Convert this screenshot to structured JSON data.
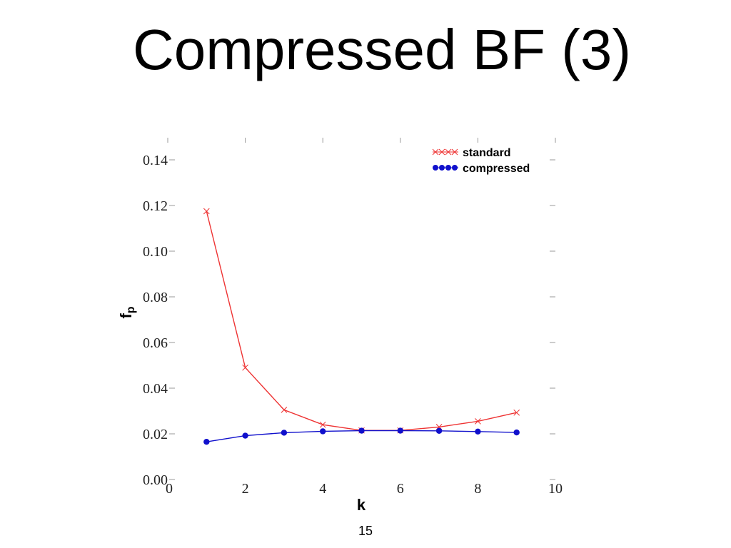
{
  "slide": {
    "title": "Compressed BF (3)",
    "page_number": "15"
  },
  "chart_data": {
    "type": "line",
    "xlabel": "k",
    "ylabel_main": "f",
    "ylabel_sub": "p",
    "xlim": [
      0,
      10
    ],
    "ylim": [
      0,
      0.14
    ],
    "x_ticks": [
      "0",
      "2",
      "4",
      "6",
      "8",
      "10"
    ],
    "x_tick_values": [
      0,
      2,
      4,
      6,
      8,
      10
    ],
    "y_ticks": [
      "0.00",
      "0.02",
      "0.04",
      "0.06",
      "0.08",
      "0.10",
      "0.12",
      "0.14"
    ],
    "y_tick_values": [
      0,
      0.02,
      0.04,
      0.06,
      0.08,
      0.1,
      0.12,
      0.14
    ],
    "grid": false,
    "legend_position": "top-right",
    "x": [
      1,
      2,
      3,
      4,
      5,
      6,
      7,
      8,
      9
    ],
    "series": [
      {
        "name": "standard",
        "color": "#ee3333",
        "marker": "x",
        "values": [
          0.1175,
          0.049,
          0.0305,
          0.024,
          0.0215,
          0.0215,
          0.023,
          0.0255,
          0.0293
        ]
      },
      {
        "name": "compressed",
        "color": "#1010cc",
        "marker": "dot",
        "values": [
          0.0165,
          0.0192,
          0.0205,
          0.0211,
          0.0214,
          0.0214,
          0.0213,
          0.021,
          0.0206
        ]
      }
    ]
  }
}
